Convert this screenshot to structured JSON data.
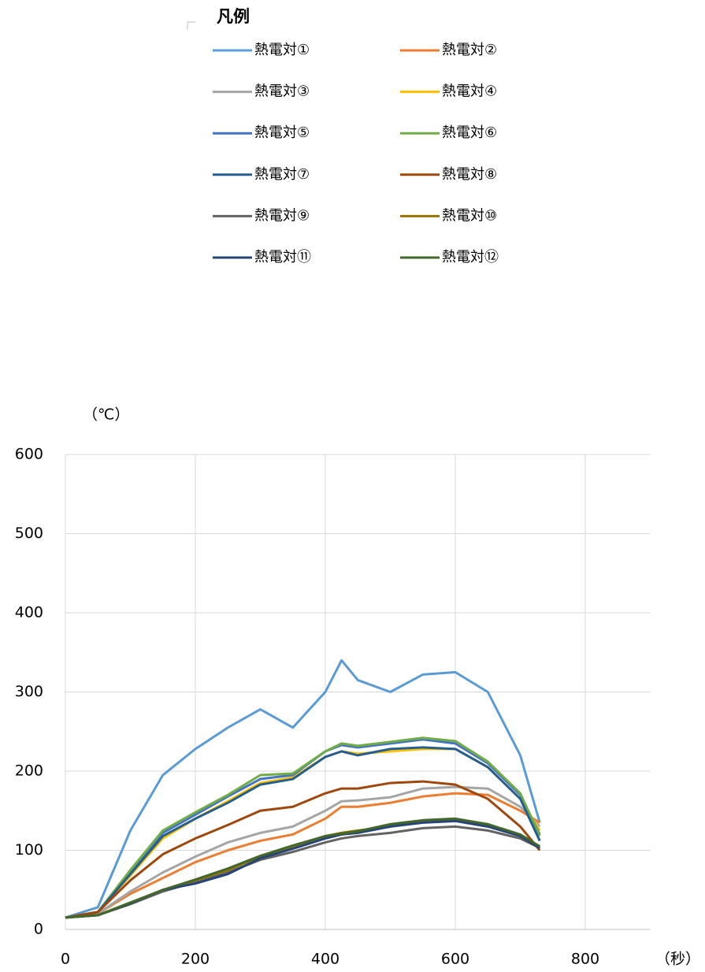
{
  "chart_data": {
    "type": "line",
    "legend_title": "凡例",
    "y_axis_label": "（℃）",
    "x_axis_label": "（秒）",
    "x": [
      0,
      50,
      100,
      150,
      200,
      250,
      300,
      350,
      400,
      425,
      450,
      500,
      550,
      600,
      650,
      700,
      730
    ],
    "series": [
      {
        "name": "熱電対①",
        "color": "#5b9bd5",
        "values": [
          15,
          28,
          125,
          195,
          228,
          255,
          278,
          255,
          300,
          340,
          315,
          300,
          322,
          325,
          300,
          220,
          135
        ]
      },
      {
        "name": "熱電対②",
        "color": "#ed7d31",
        "values": [
          15,
          20,
          45,
          65,
          85,
          100,
          112,
          120,
          140,
          155,
          155,
          160,
          168,
          172,
          170,
          150,
          135
        ]
      },
      {
        "name": "熱電対③",
        "color": "#a5a5a5",
        "values": [
          15,
          20,
          48,
          72,
          92,
          110,
          122,
          130,
          150,
          162,
          163,
          167,
          178,
          180,
          178,
          155,
          130
        ]
      },
      {
        "name": "熱電対④",
        "color": "#ffc000",
        "values": [
          15,
          22,
          68,
          115,
          140,
          162,
          185,
          192,
          218,
          225,
          222,
          225,
          228,
          228,
          205,
          165,
          125
        ]
      },
      {
        "name": "熱電対⑤",
        "color": "#4472c4",
        "values": [
          15,
          22,
          72,
          122,
          145,
          168,
          190,
          195,
          225,
          233,
          230,
          235,
          240,
          235,
          210,
          170,
          120
        ]
      },
      {
        "name": "熱電対⑥",
        "color": "#70ad47",
        "values": [
          15,
          22,
          75,
          125,
          148,
          170,
          195,
          197,
          225,
          235,
          232,
          237,
          242,
          238,
          212,
          172,
          118
        ]
      },
      {
        "name": "熱電対⑦",
        "color": "#255e91",
        "values": [
          15,
          22,
          70,
          118,
          140,
          160,
          183,
          190,
          218,
          225,
          220,
          228,
          230,
          228,
          205,
          165,
          112
        ]
      },
      {
        "name": "熱電対⑧",
        "color": "#9e480e",
        "values": [
          15,
          22,
          62,
          95,
          115,
          132,
          150,
          155,
          172,
          178,
          178,
          185,
          187,
          183,
          165,
          130,
          100
        ]
      },
      {
        "name": "熱電対⑨",
        "color": "#636363",
        "values": [
          15,
          18,
          32,
          48,
          60,
          72,
          88,
          98,
          110,
          115,
          118,
          122,
          128,
          130,
          125,
          115,
          103
        ]
      },
      {
        "name": "熱電対⑩",
        "color": "#997300",
        "values": [
          15,
          18,
          33,
          50,
          62,
          75,
          92,
          105,
          118,
          122,
          125,
          130,
          137,
          138,
          133,
          118,
          105
        ]
      },
      {
        "name": "熱電対⑪",
        "color": "#264478",
        "values": [
          15,
          18,
          33,
          50,
          58,
          70,
          90,
          102,
          115,
          120,
          122,
          130,
          135,
          137,
          130,
          118,
          103
        ]
      },
      {
        "name": "熱電対⑫",
        "color": "#43682b",
        "values": [
          15,
          18,
          34,
          50,
          63,
          77,
          93,
          106,
          118,
          121,
          124,
          133,
          138,
          140,
          133,
          120,
          105
        ]
      }
    ],
    "xlim": [
      0,
      900
    ],
    "xticks": [
      0,
      200,
      400,
      600,
      800
    ],
    "ylim": [
      0,
      600
    ],
    "yticks": [
      0,
      100,
      200,
      300,
      400,
      500,
      600
    ],
    "grid": true
  }
}
